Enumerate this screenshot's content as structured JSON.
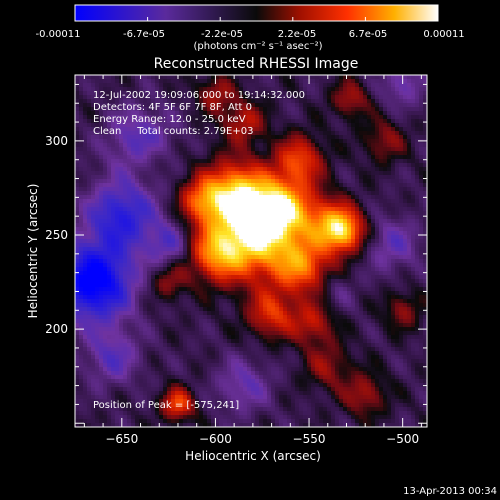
{
  "colorbar": {
    "ticks": [
      "-0.00011",
      "-6.7e-05",
      "-2.2e-05",
      "2.2e-05",
      "6.7e-05",
      "0.00011"
    ],
    "unit_label": "(photons cm⁻² s⁻¹ asec⁻²)"
  },
  "chart_data": {
    "type": "heatmap",
    "title": "Reconstructed RHESSI Image",
    "xlabel": "Heliocentric X (arcsec)",
    "ylabel": "Heliocentric Y (arcsec)",
    "xlim": [
      -675,
      -487
    ],
    "ylim": [
      148,
      335
    ],
    "x_ticks": [
      -650,
      -600,
      -550,
      -500
    ],
    "y_ticks": [
      200,
      250,
      300
    ],
    "x_tick_labels": [
      "−650",
      "−600",
      "−550",
      "−500"
    ],
    "y_tick_labels": [
      "200",
      "250",
      "300"
    ],
    "color_range": [
      -0.00011,
      0.00011
    ],
    "peak": [
      -575,
      241
    ],
    "annotations": [
      "12-Jul-2002 19:09:06.000 to 19:14:32.000",
      "Detectors: 4F 5F 6F 7F 8F, Att 0",
      "Energy Range: 12.0 - 25.0 keV",
      "Clean     Total counts: 2.79E+03"
    ],
    "peak_label": "Position of Peak = [-575,241]",
    "blobs": [
      {
        "x": -578,
        "y": 250,
        "amp": 1.0,
        "s": 16
      },
      {
        "x": -590,
        "y": 272,
        "amp": 0.8,
        "s": 12
      },
      {
        "x": -565,
        "y": 265,
        "amp": 0.7,
        "s": 11
      },
      {
        "x": -553,
        "y": 233,
        "amp": 0.6,
        "s": 10
      },
      {
        "x": -532,
        "y": 252,
        "amp": 0.85,
        "s": 8
      },
      {
        "x": -542,
        "y": 258,
        "amp": 0.4,
        "s": 10
      },
      {
        "x": -555,
        "y": 290,
        "amp": 0.55,
        "s": 9
      },
      {
        "x": -600,
        "y": 240,
        "amp": 0.6,
        "s": 10
      },
      {
        "x": -608,
        "y": 268,
        "amp": 0.5,
        "s": 8
      },
      {
        "x": -585,
        "y": 310,
        "amp": 0.4,
        "s": 8
      },
      {
        "x": -570,
        "y": 208,
        "amp": 0.5,
        "s": 9
      },
      {
        "x": -548,
        "y": 203,
        "amp": 0.4,
        "s": 8
      },
      {
        "x": -620,
        "y": 160,
        "amp": 0.6,
        "s": 6
      },
      {
        "x": -625,
        "y": 225,
        "amp": 0.3,
        "s": 7
      },
      {
        "x": -540,
        "y": 180,
        "amp": 0.3,
        "s": 9
      },
      {
        "x": -510,
        "y": 300,
        "amp": 0.3,
        "s": 8
      },
      {
        "x": -520,
        "y": 165,
        "amp": 0.35,
        "s": 8
      },
      {
        "x": -500,
        "y": 210,
        "amp": 0.3,
        "s": 7
      },
      {
        "x": -528,
        "y": 322,
        "amp": 0.35,
        "s": 7
      },
      {
        "x": -600,
        "y": 325,
        "amp": 0.35,
        "s": 7
      },
      {
        "x": -635,
        "y": 290,
        "amp": 0.15,
        "s": 8
      },
      {
        "x": -665,
        "y": 225,
        "amp": -0.95,
        "s": 14
      },
      {
        "x": -650,
        "y": 260,
        "amp": -0.6,
        "s": 13
      },
      {
        "x": -640,
        "y": 300,
        "amp": -0.4,
        "s": 12
      },
      {
        "x": -655,
        "y": 185,
        "amp": -0.35,
        "s": 10
      },
      {
        "x": -625,
        "y": 245,
        "amp": -0.35,
        "s": 8
      },
      {
        "x": -505,
        "y": 245,
        "amp": -0.3,
        "s": 10
      },
      {
        "x": -585,
        "y": 170,
        "amp": -0.3,
        "s": 10
      },
      {
        "x": -500,
        "y": 330,
        "amp": -0.3,
        "s": 8
      },
      {
        "x": -535,
        "y": 220,
        "amp": -0.15,
        "s": 7
      }
    ]
  },
  "footer": {
    "date": "13-Apr-2013 00:34"
  }
}
